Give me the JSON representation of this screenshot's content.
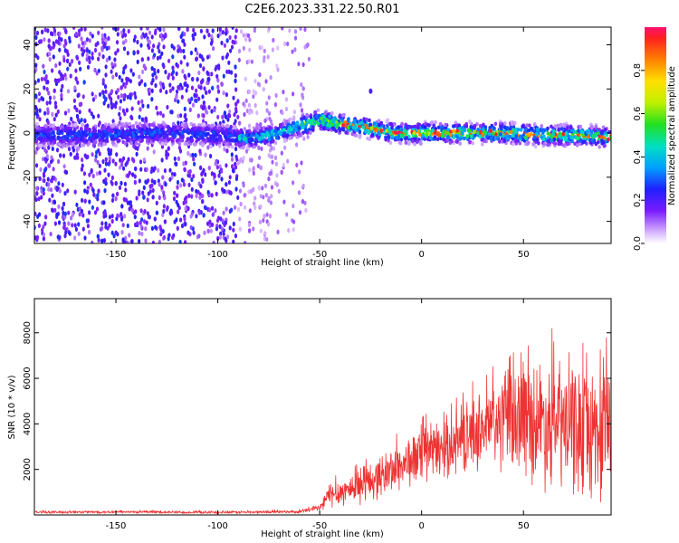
{
  "title": "C2E6.2023.331.22.50.R01",
  "colors": {
    "snr_line": "#ee3333",
    "spectrogram_low": "#e0c8ff",
    "spectrogram_mid": "#7a1cff",
    "spectrogram_peak": "#ff2020"
  },
  "chart_data": [
    {
      "type": "heatmap",
      "name": "spectrogram",
      "xlabel": "Height of straight line (km)",
      "ylabel": "Frequency (Hz)",
      "xlim": [
        -190,
        93
      ],
      "ylim": [
        -50,
        48
      ],
      "xticks": [
        -150,
        -100,
        -50,
        0,
        50
      ],
      "yticks": [
        40,
        20,
        0,
        -20,
        -40
      ],
      "colorbar": {
        "label": "Normalized spectral amplitude",
        "range": [
          0.0,
          1.0
        ],
        "ticks": [
          0.0,
          0.2,
          0.4,
          0.6,
          0.8
        ],
        "colormap": "rainbow (violet to red)"
      },
      "signal_trace": {
        "x": [
          -190,
          -160,
          -130,
          -100,
          -90,
          -80,
          -70,
          -60,
          -50,
          -40,
          -30,
          -20,
          -10,
          0,
          20,
          40,
          60,
          80,
          93
        ],
        "frequency": [
          -1,
          -1,
          0,
          -1,
          -2,
          -2,
          0,
          3,
          6,
          4,
          3,
          1,
          0,
          0,
          0,
          0,
          -1,
          -1,
          -2
        ]
      },
      "grid": false
    },
    {
      "type": "line",
      "name": "snr",
      "xlabel": "Height of straight line (km)",
      "ylabel": "SNR (10 * v/v)",
      "xlim": [
        -190,
        93
      ],
      "ylim": [
        0,
        9500
      ],
      "xticks": [
        -150,
        -100,
        -50,
        0,
        50
      ],
      "yticks": [
        2000,
        4000,
        6000,
        8000
      ],
      "envelope": {
        "x": [
          -190,
          -150,
          -100,
          -60,
          -50,
          -45,
          -40,
          -30,
          -20,
          -10,
          0,
          10,
          20,
          30,
          40,
          50,
          60,
          70,
          80,
          93
        ],
        "mean": [
          120,
          130,
          110,
          140,
          300,
          900,
          1000,
          1300,
          1700,
          2200,
          2600,
          2900,
          3300,
          3800,
          4100,
          4300,
          4100,
          3900,
          3700,
          3600
        ],
        "spread": [
          60,
          60,
          60,
          70,
          200,
          700,
          700,
          900,
          1100,
          1300,
          1400,
          1500,
          1700,
          2000,
          2600,
          3000,
          3300,
          3400,
          3500,
          3600
        ]
      },
      "grid": false
    }
  ]
}
